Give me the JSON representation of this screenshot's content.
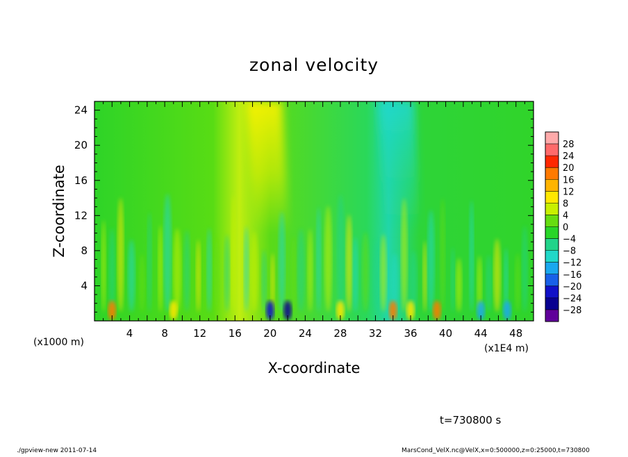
{
  "chart_data": {
    "type": "heatmap",
    "title": "zonal velocity",
    "xlabel": "X-coordinate",
    "ylabel": "Z-coordinate",
    "x_unit_note": "(x1000 m)",
    "x_unit_note_right": "(x1E4 m)",
    "x_ticks": [
      4,
      8,
      12,
      16,
      20,
      24,
      28,
      32,
      36,
      40,
      44,
      48
    ],
    "y_ticks": [
      4,
      8,
      12,
      16,
      20,
      24
    ],
    "xlim": [
      0,
      50
    ],
    "ylim": [
      0,
      25
    ],
    "grid": false,
    "legend_position": "right",
    "colorbar": {
      "levels": [
        28,
        24,
        20,
        16,
        12,
        8,
        4,
        0,
        -4,
        -8,
        -12,
        -16,
        -20,
        -24,
        -28
      ],
      "labels": [
        "28",
        "24",
        "20",
        "16",
        "12",
        "8",
        "4",
        "0",
        "−4",
        "−8",
        "−12",
        "−16",
        "−20",
        "−24",
        "−28"
      ],
      "colors": [
        "#ffaaaa",
        "#ff6a6a",
        "#ff2800",
        "#ff7a00",
        "#ffb400",
        "#ffe800",
        "#c8f000",
        "#66dd10",
        "#28d628",
        "#22d48a",
        "#20d8c8",
        "#1aa8ee",
        "#1860e8",
        "#1010c8",
        "#080090",
        "#60009a"
      ]
    },
    "field_summary": {
      "background_value": 0,
      "upper_band": [
        {
          "x_center": 19,
          "value": 11
        },
        {
          "x_center": 34,
          "value": -7
        }
      ],
      "near_surface_extremes": [
        {
          "x": 2,
          "value": 18
        },
        {
          "x": 9,
          "value": 10
        },
        {
          "x": 20,
          "value": -22
        },
        {
          "x": 22,
          "value": -25
        },
        {
          "x": 28,
          "value": 10
        },
        {
          "x": 34,
          "value": 18
        },
        {
          "x": 36,
          "value": 12
        },
        {
          "x": 39,
          "value": 20
        },
        {
          "x": 44,
          "value": -12
        },
        {
          "x": 47,
          "value": -14
        }
      ]
    }
  },
  "footer": {
    "time_label": "t=730800 s",
    "left_note": "./gpview-new   2011-07-14",
    "right_note": "MarsCond_VelX.nc@VelX,x=0:500000,z=0:25000,t=730800"
  }
}
